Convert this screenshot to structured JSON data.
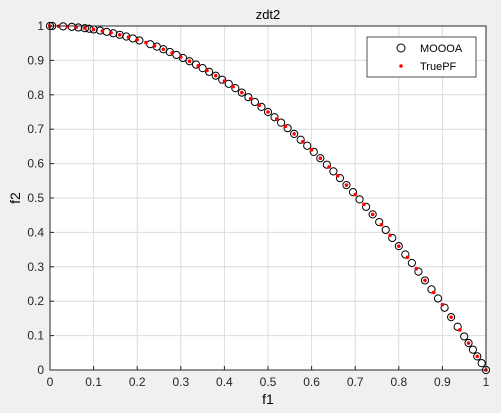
{
  "chart_data": {
    "type": "scatter",
    "title": "zdt2",
    "xlabel": "f1",
    "ylabel": "f2",
    "xlim": [
      0,
      1
    ],
    "ylim": [
      0,
      1
    ],
    "grid": true,
    "legend_position": "top-right",
    "x_ticks": [
      "0",
      "0.1",
      "0.2",
      "0.3",
      "0.4",
      "0.5",
      "0.6",
      "0.7",
      "0.8",
      "0.9",
      "1"
    ],
    "y_ticks": [
      "0",
      "0.1",
      "0.2",
      "0.3",
      "0.4",
      "0.5",
      "0.6",
      "0.7",
      "0.8",
      "0.9",
      "1"
    ],
    "series": [
      {
        "name": "MOOOA",
        "marker": "open-circle",
        "color": "#000000",
        "x": [
          0.0,
          0.005,
          0.03,
          0.05,
          0.065,
          0.08,
          0.09,
          0.1,
          0.115,
          0.13,
          0.145,
          0.16,
          0.175,
          0.19,
          0.205,
          0.23,
          0.245,
          0.26,
          0.275,
          0.29,
          0.305,
          0.32,
          0.335,
          0.35,
          0.365,
          0.38,
          0.395,
          0.41,
          0.425,
          0.44,
          0.455,
          0.47,
          0.485,
          0.5,
          0.515,
          0.53,
          0.545,
          0.56,
          0.575,
          0.59,
          0.605,
          0.62,
          0.635,
          0.65,
          0.665,
          0.68,
          0.695,
          0.71,
          0.725,
          0.74,
          0.755,
          0.77,
          0.785,
          0.8,
          0.815,
          0.83,
          0.845,
          0.86,
          0.875,
          0.89,
          0.905,
          0.92,
          0.935,
          0.95,
          0.96,
          0.97,
          0.98,
          0.99,
          1.0
        ],
        "y": [
          1.0,
          1.0,
          0.999,
          0.9975,
          0.9958,
          0.9936,
          0.9919,
          0.99,
          0.9868,
          0.9831,
          0.979,
          0.9744,
          0.9694,
          0.9639,
          0.958,
          0.9471,
          0.94,
          0.9324,
          0.9244,
          0.9159,
          0.907,
          0.8976,
          0.8878,
          0.8775,
          0.8668,
          0.8556,
          0.844,
          0.8319,
          0.8194,
          0.8064,
          0.793,
          0.7791,
          0.7648,
          0.75,
          0.7348,
          0.7191,
          0.703,
          0.6864,
          0.6694,
          0.6519,
          0.634,
          0.6156,
          0.5968,
          0.5775,
          0.5578,
          0.5376,
          0.517,
          0.4959,
          0.4744,
          0.4524,
          0.43,
          0.4071,
          0.3838,
          0.36,
          0.3358,
          0.3111,
          0.286,
          0.2604,
          0.2344,
          0.2079,
          0.181,
          0.1536,
          0.1258,
          0.0975,
          0.0784,
          0.0591,
          0.0396,
          0.0199,
          0.0
        ]
      },
      {
        "name": "TruePF",
        "marker": "dot",
        "color": "#ff0000",
        "x": [
          0.0,
          0.02,
          0.04,
          0.06,
          0.08,
          0.1,
          0.12,
          0.14,
          0.16,
          0.18,
          0.2,
          0.22,
          0.24,
          0.26,
          0.28,
          0.3,
          0.32,
          0.34,
          0.36,
          0.38,
          0.4,
          0.42,
          0.44,
          0.46,
          0.48,
          0.5,
          0.52,
          0.54,
          0.56,
          0.58,
          0.6,
          0.62,
          0.64,
          0.66,
          0.68,
          0.7,
          0.72,
          0.74,
          0.76,
          0.78,
          0.8,
          0.82,
          0.84,
          0.86,
          0.88,
          0.9,
          0.92,
          0.94,
          0.96,
          0.98,
          1.0
        ],
        "y": [
          1.0,
          0.9996,
          0.9984,
          0.9964,
          0.9936,
          0.99,
          0.9856,
          0.9804,
          0.9744,
          0.9676,
          0.96,
          0.9516,
          0.9424,
          0.9324,
          0.9216,
          0.91,
          0.8976,
          0.8844,
          0.8704,
          0.8556,
          0.84,
          0.8236,
          0.8064,
          0.7884,
          0.7696,
          0.75,
          0.7296,
          0.7084,
          0.6864,
          0.6636,
          0.64,
          0.6156,
          0.5904,
          0.5644,
          0.5376,
          0.51,
          0.4816,
          0.4524,
          0.4224,
          0.3916,
          0.36,
          0.3276,
          0.2944,
          0.2604,
          0.2256,
          0.19,
          0.1536,
          0.1164,
          0.0784,
          0.0396,
          0.0
        ]
      }
    ]
  }
}
